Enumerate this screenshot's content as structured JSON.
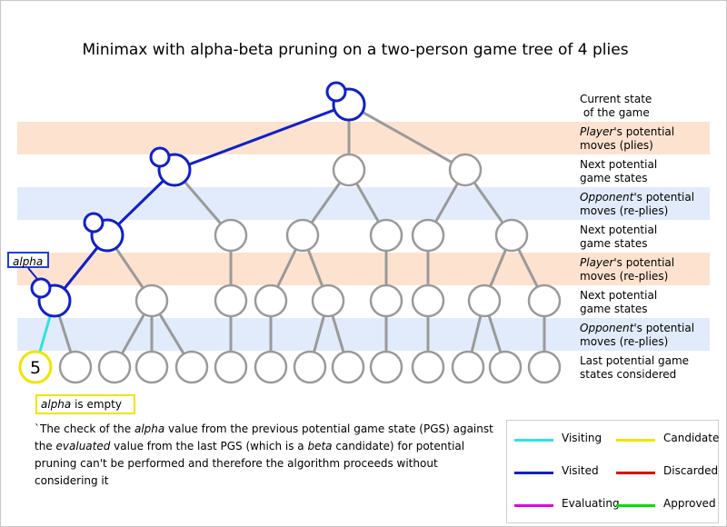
{
  "title": "Minimax with alpha-beta pruning on a two-person game tree of 4 plies",
  "row_labels": [
    {
      "pre": "",
      "em": "",
      "post": "Current state",
      "line2": " of the game"
    },
    {
      "pre": "",
      "em": "Player",
      "post": "'s potential",
      "line2": "moves (plies)"
    },
    {
      "pre": "",
      "em": "",
      "post": "Next potential",
      "line2": "game states"
    },
    {
      "pre": "",
      "em": "Opponent",
      "post": "'s potential",
      "line2": "moves (re-plies)"
    },
    {
      "pre": "",
      "em": "",
      "post": "Next potential",
      "line2": "game states"
    },
    {
      "pre": "",
      "em": "Player",
      "post": "'s potential",
      "line2": "moves (re-plies)"
    },
    {
      "pre": "",
      "em": "",
      "post": "Next potential",
      "line2": "game states"
    },
    {
      "pre": "",
      "em": "Opponent",
      "post": "'s potential",
      "line2": "moves (re-plies)"
    },
    {
      "pre": "",
      "em": "",
      "post": "Last potential game",
      "line2": "states considered"
    }
  ],
  "alpha_tag": "alpha",
  "evaluated_value": "5",
  "alpha_status": {
    "em": "alpha",
    "rest": " is empty"
  },
  "explanation": {
    "p1": "`The check of the ",
    "em1": "alpha",
    "p2": " value from the previous potential game state (PGS) against the ",
    "em2": "evaluated",
    "p3": " value from the last PGS (which is a ",
    "em3": "beta",
    "p4": " candidate) for potential pruning can't be performed and therefore the algorithm proceeds without considering it"
  },
  "legend": [
    {
      "label": "Visiting",
      "color": "#33e0e6"
    },
    {
      "label": "Candidate",
      "color": "#f0e400"
    },
    {
      "label": "Visited",
      "color": "#1020c8"
    },
    {
      "label": "Discarded",
      "color": "#e00000"
    },
    {
      "label": "Evaluating",
      "color": "#e000e0"
    },
    {
      "label": "Approved",
      "color": "#00e000"
    }
  ],
  "colors": {
    "band_player": "#fde2cf",
    "band_opponent": "#e2ebfb",
    "node_gray": "#9a9a9a",
    "visited_blue": "#1020c8",
    "visiting_cyan": "#33e0e6",
    "candidate_yellow": "#f0e400"
  }
}
